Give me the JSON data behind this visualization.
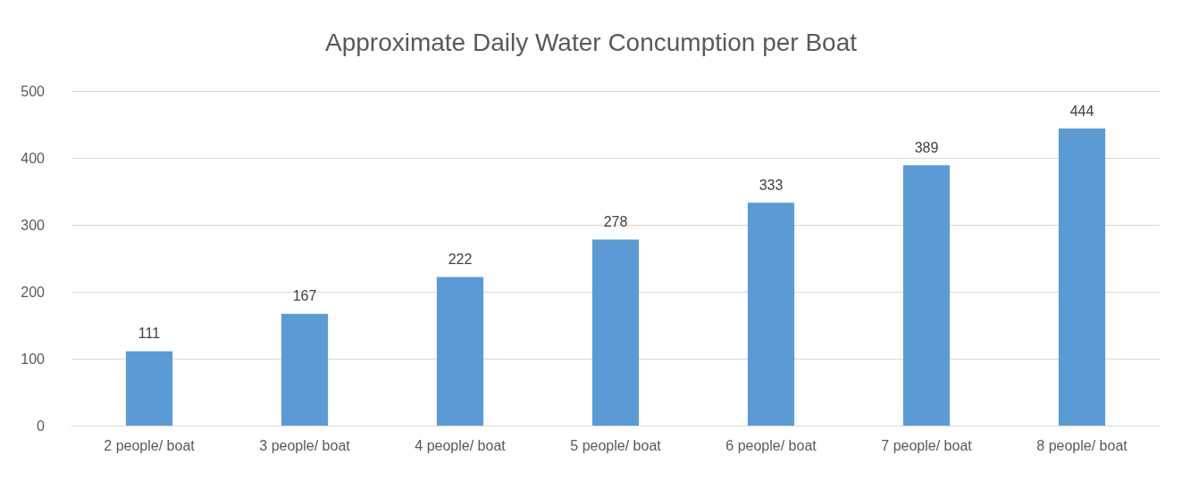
{
  "chart_data": {
    "type": "bar",
    "title": "Approximate Daily Water Concumption per Boat",
    "categories": [
      "2 people/ boat",
      "3 people/ boat",
      "4 people/ boat",
      "5 people/ boat",
      "6 people/ boat",
      "7 people/ boat",
      "8 people/ boat"
    ],
    "values": [
      111,
      167,
      222,
      278,
      333,
      389,
      444
    ],
    "color": "#5b9bd5",
    "ylim": [
      0,
      500
    ],
    "yticks": [
      0,
      100,
      200,
      300,
      400,
      500
    ],
    "grid": "y",
    "data_labels": true
  }
}
